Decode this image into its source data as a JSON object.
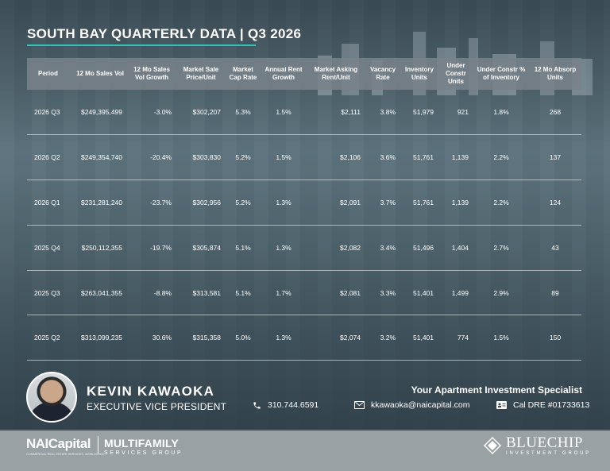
{
  "title": "SOUTH BAY QUARTERLY DATA | Q3 2026",
  "table": {
    "headers": [
      "Period",
      "12 Mo Sales Vol",
      "12 Mo Sales Vol Growth",
      "Market Sale Price/Unit",
      "Market Cap Rate",
      "Annual Rent Growth",
      "Market Asking Rent/Unit",
      "Vacancy Rate",
      "Inventory Units",
      "Under Constr Units",
      "Under Constr % of Inventory",
      "12 Mo Absorp Units"
    ],
    "rows": [
      [
        "2026 Q3",
        "$249,395,499",
        "-3.0%",
        "$302,207",
        "5.3%",
        "1.5%",
        "$2,111",
        "3.8%",
        "51,979",
        "921",
        "1.8%",
        "268"
      ],
      [
        "2026 Q2",
        "$249,354,740",
        "-20.4%",
        "$303,830",
        "5.2%",
        "1.5%",
        "$2,106",
        "3.6%",
        "51,761",
        "1,139",
        "2.2%",
        "137"
      ],
      [
        "2026 Q1",
        "$231,281,240",
        "-23.7%",
        "$302,956",
        "5.2%",
        "1.3%",
        "$2,091",
        "3.7%",
        "51,761",
        "1,139",
        "2.2%",
        "124"
      ],
      [
        "2025 Q4",
        "$250,112,355",
        "-19.7%",
        "$305,874",
        "5.1%",
        "1.3%",
        "$2,082",
        "3.4%",
        "51,496",
        "1,404",
        "2.7%",
        "43"
      ],
      [
        "2025 Q3",
        "$263,041,355",
        "-8.8%",
        "$313,581",
        "5.1%",
        "1.7%",
        "$2,081",
        "3.3%",
        "51,401",
        "1,499",
        "2.9%",
        "89"
      ],
      [
        "2025 Q2",
        "$313,099,235",
        "30.6%",
        "$315,358",
        "5.0%",
        "1.3%",
        "$2,074",
        "3.2%",
        "51,401",
        "774",
        "1.5%",
        "150"
      ]
    ]
  },
  "agent": {
    "name": "KEVIN KAWAOKA",
    "role": "EXECUTIVE VICE PRESIDENT",
    "tagline": "Your Apartment Investment Specialist",
    "phone": "310.744.6591",
    "email": "kkawaoka@naicapital.com",
    "license": "Cal DRE #01733613"
  },
  "brands": {
    "nai": "NAICapital",
    "nai_tagline": "COMMERCIAL REAL ESTATE SERVICES, WORLDWIDE",
    "multifamily": "MULTIFAMILY",
    "services_group": "SERVICES GROUP",
    "bluechip": "BLUECHIP",
    "bluechip_sub": "INVESTMENT GROUP"
  },
  "colors": {
    "accent": "#2ec4b6",
    "header_bg": "#7a8288",
    "bottom_bar": "#9aa1a5"
  },
  "icons": {
    "phone": "phone-icon",
    "email": "envelope-icon",
    "license": "id-card-icon",
    "bluechip": "diamond-icon"
  }
}
